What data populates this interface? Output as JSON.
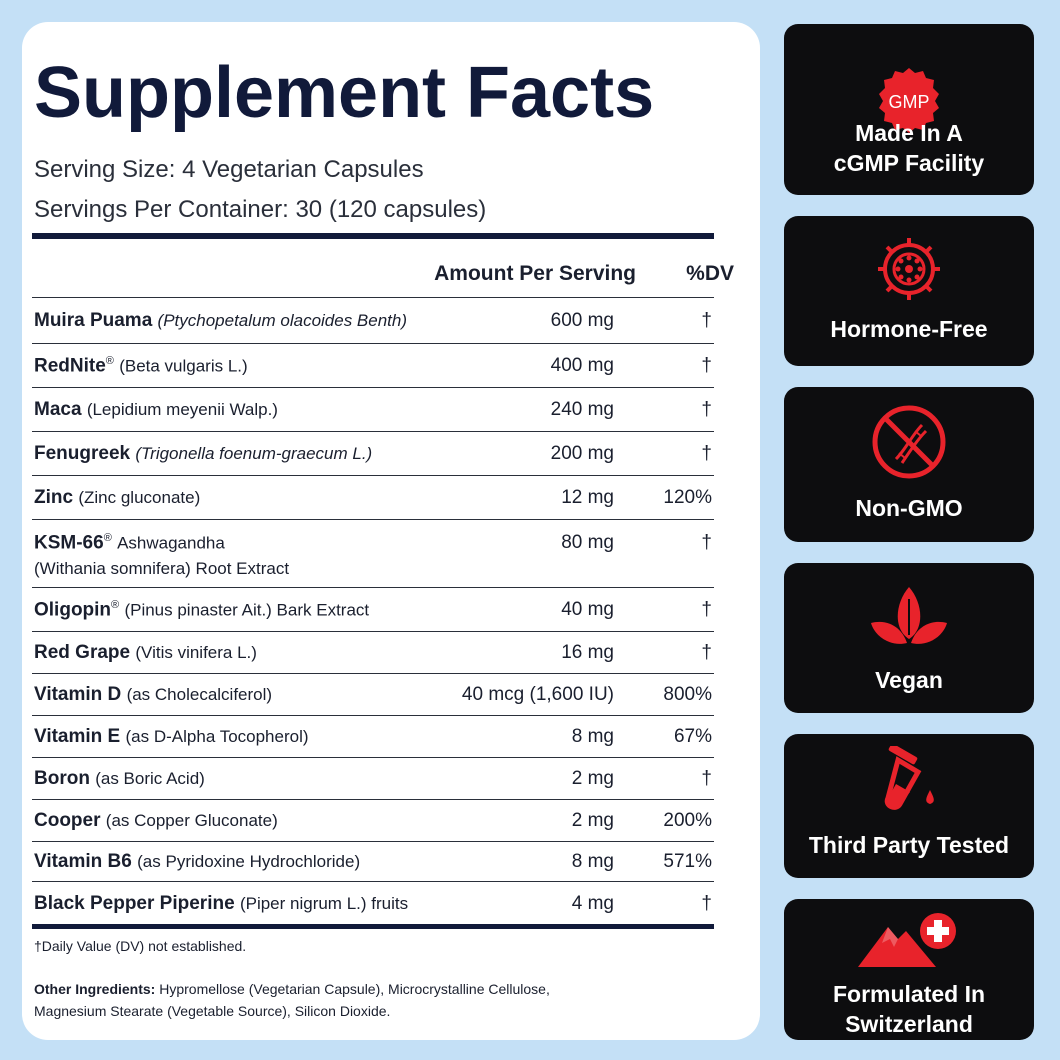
{
  "title": "Supplement Facts",
  "serving_size": "Serving Size: 4 Vegetarian Capsules",
  "servings_per_container": "Servings Per Container: 30 (120 capsules)",
  "header": {
    "amount": "Amount Per Serving",
    "dv": "%DV"
  },
  "ingredients": [
    {
      "name": "Muira Puama",
      "desc": "(Ptychopetalum olacoides Benth)",
      "amount": "600 mg",
      "dv": "†"
    },
    {
      "name": "RedNite",
      "desc": "(Beta vulgaris L.)",
      "amount": "400 mg",
      "dv": "†"
    },
    {
      "name": "Maca",
      "desc": "(Lepidium meyenii Walp.)",
      "amount": "240 mg",
      "dv": "†"
    },
    {
      "name": "Fenugreek",
      "desc": "(Trigonella foenum-graecum L.)",
      "amount": "200 mg",
      "dv": "†"
    },
    {
      "name": "Zinc",
      "desc": "(Zinc gluconate)",
      "amount": "12 mg",
      "dv": "120%"
    },
    {
      "name": "KSM-66",
      "desc": "Ashwagandha",
      "desc2": "(Withania somnifera) Root Extract",
      "amount": "80 mg",
      "dv": "†"
    },
    {
      "name": "Oligopin",
      "desc": "(Pinus pinaster Ait.) Bark Extract",
      "amount": "40 mg",
      "dv": "†"
    },
    {
      "name": "Red Grape",
      "desc": "(Vitis vinifera L.)",
      "amount": "16 mg",
      "dv": "†"
    },
    {
      "name": "Vitamin D",
      "desc": "(as Cholecalciferol)",
      "amount": "40 mcg (1,600 IU)",
      "dv": "800%"
    },
    {
      "name": "Vitamin E",
      "desc": "(as D-Alpha Tocopherol)",
      "amount": "8 mg",
      "dv": "67%"
    },
    {
      "name": "Boron",
      "desc": "(as Boric Acid)",
      "amount": "2 mg",
      "dv": "†"
    },
    {
      "name": "Cooper",
      "desc": "(as Copper Gluconate)",
      "amount": "2 mg",
      "dv": "200%"
    },
    {
      "name": "Vitamin B6",
      "desc": "(as Pyridoxine Hydrochloride)",
      "amount": "8 mg",
      "dv": "571%"
    },
    {
      "name": "Black Pepper Piperine",
      "desc": "(Piper nigrum L.) fruits",
      "amount": "4 mg",
      "dv": "†"
    }
  ],
  "registered_mark": "®",
  "footnote": "†Daily Value (DV) not established.",
  "other_ingredients": {
    "label": "Other Ingredients:",
    "text": "Hypromellose (Vegetarian Capsule), Microcrystalline Cellulose, Magnesium Stearate (Vegetable Source), Silicon Dioxide."
  },
  "badges": [
    {
      "icon": "gmp-seal-icon",
      "icon_text": "GMP",
      "label": "Made In A\ncGMP Facility"
    },
    {
      "icon": "hormone-icon",
      "label": "Hormone-Free"
    },
    {
      "icon": "no-dna-icon",
      "label": "Non-GMO"
    },
    {
      "icon": "leaf-icon",
      "label": "Vegan"
    },
    {
      "icon": "test-tube-icon",
      "label": "Third Party Tested"
    },
    {
      "icon": "swiss-mountain-icon",
      "label": "Formulated In\nSwitzerland"
    }
  ],
  "colors": {
    "background": "#c4e0f6",
    "panel": "#ffffff",
    "title": "#111a3a",
    "badge_bg": "#0d0d0f",
    "accent_red": "#e8232b"
  }
}
